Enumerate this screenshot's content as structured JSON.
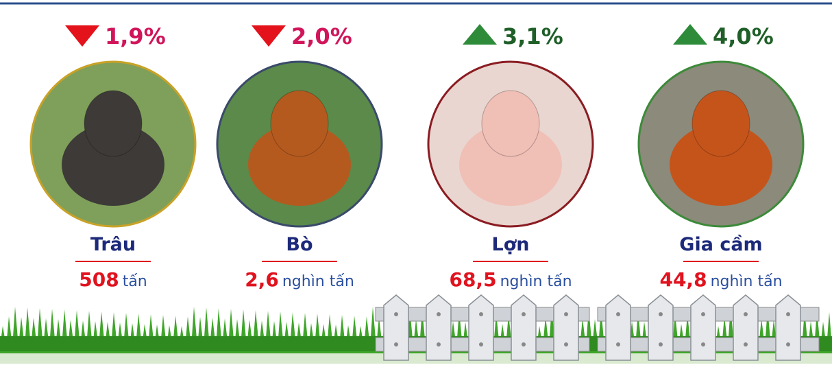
{
  "items": [
    {
      "name": "Trâu",
      "change": "1,9%",
      "direction": "down",
      "value": "508",
      "unit": "tấn",
      "ring": "#c9a227",
      "scene": "#7fa05a",
      "animal": "#3d3a38"
    },
    {
      "name": "Bò",
      "change": "2,0%",
      "direction": "down",
      "value": "2,6",
      "unit": "nghìn tấn",
      "ring": "#3a4a6a",
      "scene": "#5b8a4a",
      "animal": "#b55a1f"
    },
    {
      "name": "Lợn",
      "change": "3,1%",
      "direction": "up",
      "value": "68,5",
      "unit": "nghìn tấn",
      "ring": "#8a1c22",
      "scene": "#e9d6d0",
      "animal": "#f0bfb6"
    },
    {
      "name": "Gia cầm",
      "change": "4,0%",
      "direction": "up",
      "value": "44,8",
      "unit": "nghìn tấn",
      "ring": "#3d8a3a",
      "scene": "#8c8a7a",
      "animal": "#c5541b"
    }
  ]
}
